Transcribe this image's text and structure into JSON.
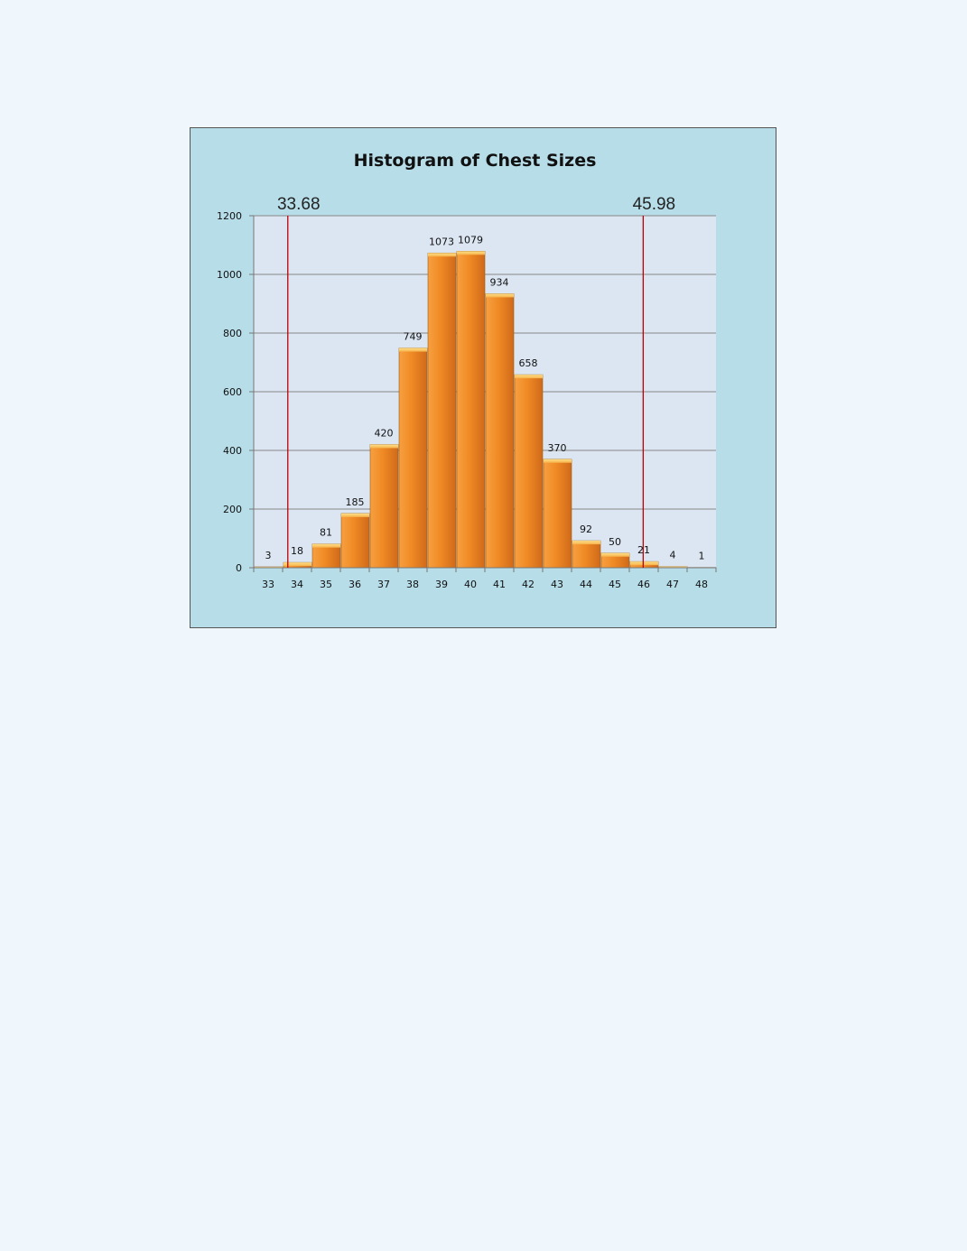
{
  "chart_data": {
    "type": "bar",
    "title": "Histogram of Chest Sizes",
    "xlabel": "",
    "ylabel": "",
    "categories": [
      "33",
      "34",
      "35",
      "36",
      "37",
      "38",
      "39",
      "40",
      "41",
      "42",
      "43",
      "44",
      "45",
      "46",
      "47",
      "48"
    ],
    "values": [
      3,
      18,
      81,
      185,
      420,
      749,
      1073,
      1079,
      934,
      658,
      370,
      92,
      50,
      21,
      4,
      1
    ],
    "data_labels": [
      "3",
      "18",
      "81",
      "185",
      "420",
      "749",
      "1073",
      "1079",
      "934",
      "658",
      "370",
      "92",
      "50",
      "21",
      "4",
      "1"
    ],
    "ylim": [
      0,
      1200
    ],
    "yticks": [
      "0",
      "200",
      "400",
      "600",
      "800",
      "1000",
      "1200"
    ],
    "grid": true,
    "legend": "none",
    "reference_lines": [
      {
        "value": 33.68,
        "label": "33.68"
      },
      {
        "value": 45.98,
        "label": "45.98"
      }
    ],
    "colors": {
      "bar_fill": "#f08a24",
      "bar_edge": "#9a5a12",
      "plot_bg": "#dbe6f2",
      "chart_bg": "#b7dde9",
      "gridline": "#888888",
      "reference_line": "#c00000"
    }
  }
}
